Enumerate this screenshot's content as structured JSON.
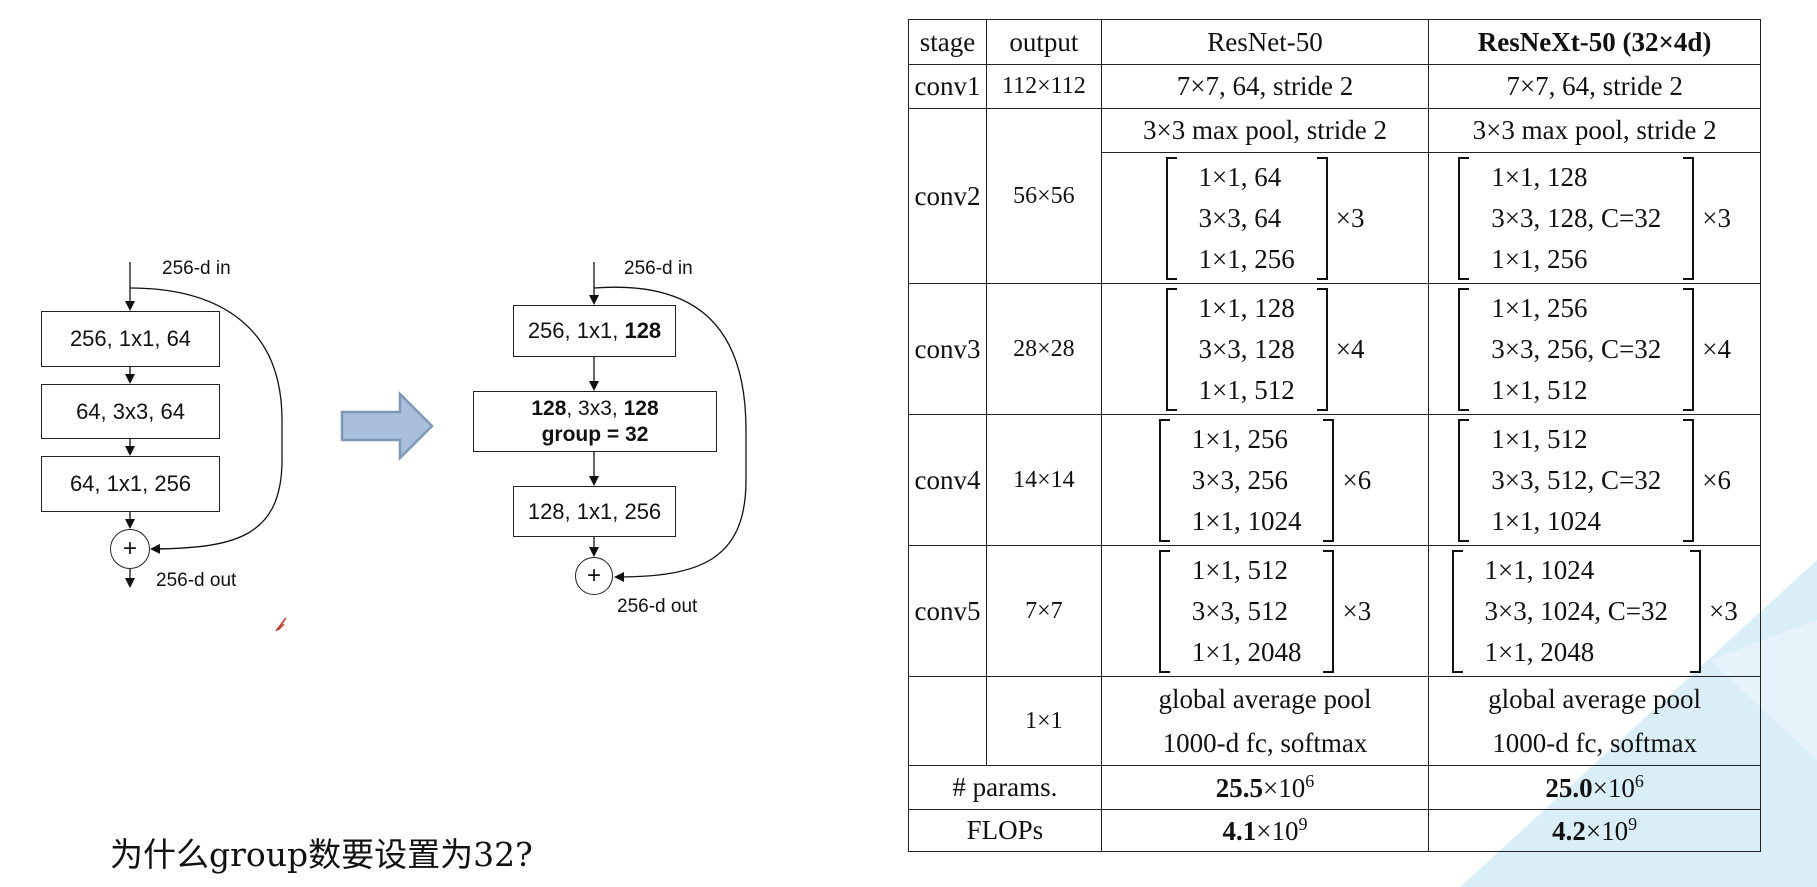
{
  "left_block": {
    "in_label": "256-d in",
    "layers": [
      "256, 1x1, 64",
      "64, 3x3, 64",
      "64, 1x1, 256"
    ],
    "plus": "+",
    "out_label": "256-d out"
  },
  "right_block": {
    "in_label": "256-d in",
    "layer1": {
      "prefix": "256, 1x1, ",
      "bold": "128"
    },
    "layer2": {
      "bold1": "128",
      "mid": ", 3x3, ",
      "bold2": "128",
      "line2": "group = 32"
    },
    "layer3": "128, 1x1, 256",
    "plus": "+",
    "out_label": "256-d out"
  },
  "question": "为什么group数要设置为32?",
  "colors": {
    "arrow_fill": "#a9bfdc",
    "arrow_stroke": "#7f98b8",
    "watermark": "#d6ecf7"
  },
  "table": {
    "headers": {
      "stage": "stage",
      "output": "output",
      "resnet": "ResNet-50",
      "resnext": "ResNeXt-50 (32×4d)"
    },
    "conv1": {
      "stage": "conv1",
      "output": "112×112",
      "resnet": "7×7, 64, stride 2",
      "resnext": "7×7, 64, stride 2"
    },
    "conv2": {
      "stage": "conv2",
      "output": "56×56",
      "pool_resnet": "3×3 max pool, stride 2",
      "pool_resnext": "3×3 max pool, stride 2",
      "resnet": [
        "1×1, 64",
        "3×3, 64",
        "1×1, 256"
      ],
      "resnet_rep": "×3",
      "resnext": [
        "1×1, 128",
        "3×3, 128, C=32",
        "1×1, 256"
      ],
      "resnext_rep": "×3"
    },
    "conv3": {
      "stage": "conv3",
      "output": "28×28",
      "resnet": [
        "1×1, 128",
        "3×3, 128",
        "1×1, 512"
      ],
      "resnet_rep": "×4",
      "resnext": [
        "1×1, 256",
        "3×3, 256, C=32",
        "1×1, 512"
      ],
      "resnext_rep": "×4"
    },
    "conv4": {
      "stage": "conv4",
      "output": "14×14",
      "resnet": [
        "1×1, 256",
        "3×3, 256",
        "1×1, 1024"
      ],
      "resnet_rep": "×6",
      "resnext": [
        "1×1, 512",
        "3×3, 512, C=32",
        "1×1, 1024"
      ],
      "resnext_rep": "×6"
    },
    "conv5": {
      "stage": "conv5",
      "output": "7×7",
      "resnet": [
        "1×1, 512",
        "3×3, 512",
        "1×1, 2048"
      ],
      "resnet_rep": "×3",
      "resnext": [
        "1×1, 1024",
        "3×3, 1024, C=32",
        "1×1, 2048"
      ],
      "resnext_rep": "×3"
    },
    "final": {
      "output": "1×1",
      "line1": "global average pool",
      "line2": "1000-d fc, softmax"
    },
    "params": {
      "label": "# params.",
      "resnet_val": "25.5",
      "resnet_exp_base": "×10",
      "resnet_exp": "6",
      "resnext_val": "25.0",
      "resnext_exp_base": "×10",
      "resnext_exp": "6"
    },
    "flops": {
      "label": "FLOPs",
      "resnet_val": "4.1",
      "resnet_exp_base": "×10",
      "resnet_exp": "9",
      "resnext_val": "4.2",
      "resnext_exp_base": "×10",
      "resnext_exp": "9"
    }
  }
}
